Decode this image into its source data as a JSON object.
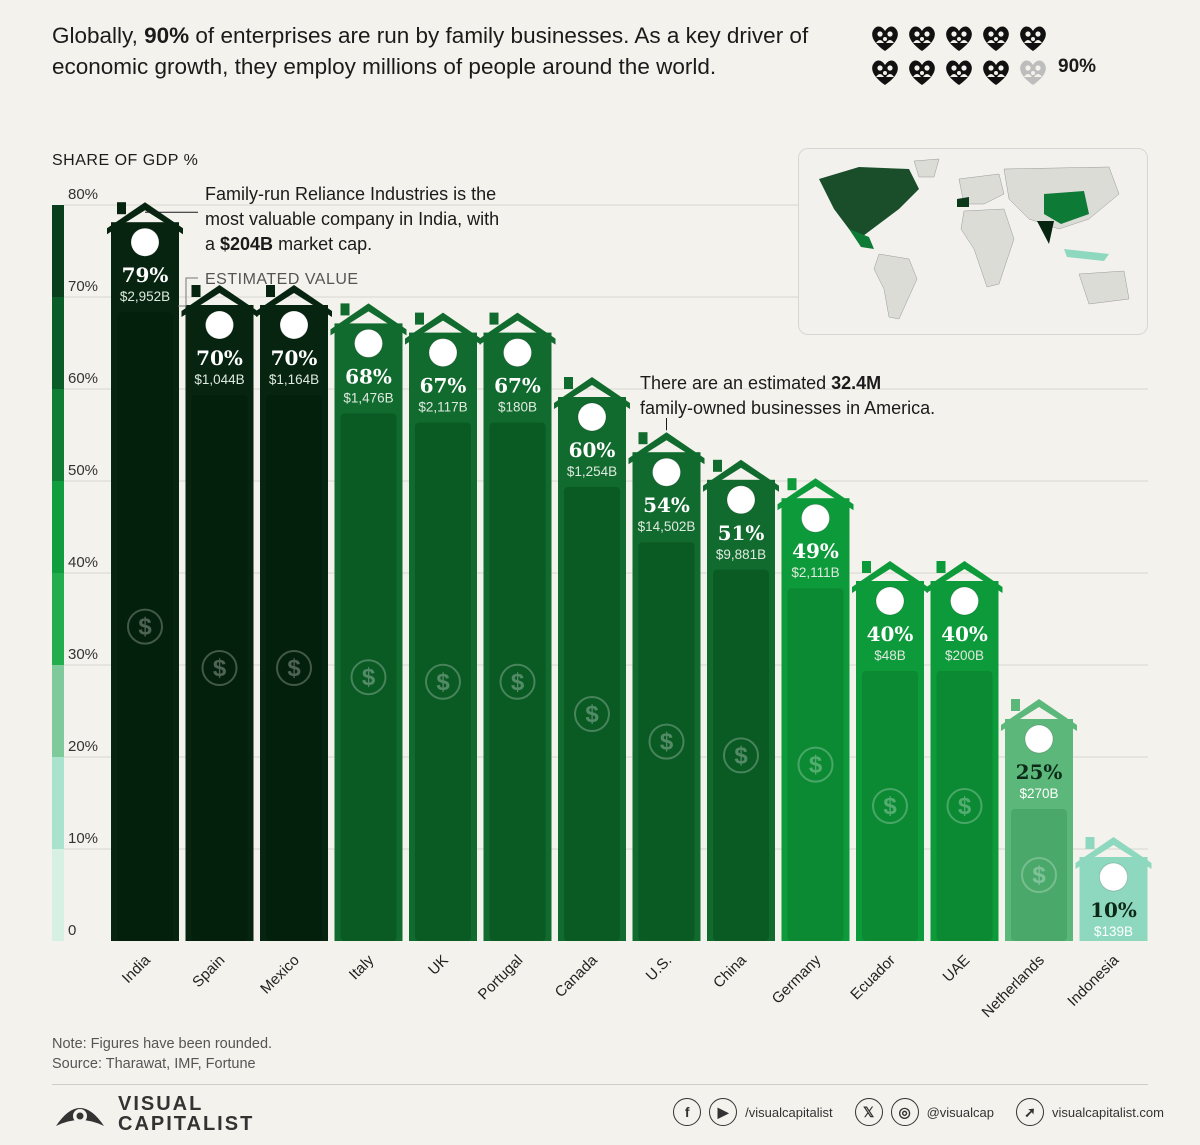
{
  "header": {
    "headline_parts": [
      "Globally, ",
      "90%",
      " of enterprises are run by family businesses. As a key driver of economic growth, they employ millions of people around the world."
    ],
    "icon_stat": "90%",
    "icon_share": 0.9
  },
  "colors": {
    "background": "#f4f2ec",
    "darkest": "#062410",
    "dark": "#0b3a1b",
    "mid": "#116b2e",
    "bright": "#0d9a3a",
    "light": "#5cb87a",
    "pale": "#8ed8bf"
  },
  "chart_data": {
    "type": "bar",
    "ylabel": "SHARE OF GDP %",
    "ylim": [
      0,
      80
    ],
    "yticks": [
      "0",
      "10%",
      "20%",
      "30%",
      "40%",
      "50%",
      "60%",
      "70%",
      "80%"
    ],
    "categories": [
      "India",
      "Spain",
      "Mexico",
      "Italy",
      "UK",
      "Portugal",
      "Canada",
      "U.S.",
      "China",
      "Germany",
      "Ecuador",
      "UAE",
      "Netherlands",
      "Indonesia"
    ],
    "values": [
      79,
      70,
      70,
      68,
      67,
      67,
      60,
      54,
      51,
      49,
      40,
      40,
      25,
      10
    ],
    "value_labels": [
      "79%",
      "70%",
      "70%",
      "68%",
      "67%",
      "67%",
      "60%",
      "54%",
      "51%",
      "49%",
      "40%",
      "40%",
      "25%",
      "10%"
    ],
    "estimated_values": [
      "$2,952B",
      "$1,044B",
      "$1,164B",
      "$1,476B",
      "$2,117B",
      "$180B",
      "$1,254B",
      "$14,502B",
      "$9,881B",
      "$2,111B",
      "$48B",
      "$200B",
      "$270B",
      "$139B"
    ],
    "estimated_value_label": "ESTIMATED VALUE",
    "dollar_sign": "$",
    "annotations": [
      {
        "parts": [
          "Family-run Reliance Industries is the",
          "most valuable company in India, with",
          "a ",
          "$204B",
          " market cap."
        ]
      },
      {
        "parts": [
          "There are an estimated ",
          "32.4M",
          "family-owned businesses in America."
        ]
      }
    ]
  },
  "footer": {
    "note": "Note: Figures have been rounded.",
    "source": "Source: Tharawat, IMF, Fortune",
    "brand_line1": "VISUAL",
    "brand_line2": "CAPITALIST",
    "social_handle_1": "/visualcapitalist",
    "social_handle_2": "@visualcap",
    "website": "visualcapitalist.com"
  }
}
